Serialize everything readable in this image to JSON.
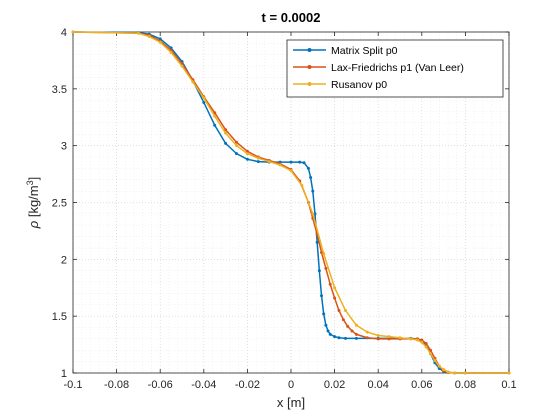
{
  "chart_data": {
    "type": "line",
    "title": "t = 0.0002",
    "xlabel": "x [m]",
    "ylabel_symbol": "ρ",
    "ylabel_unit": "[kg/m",
    "ylabel_exp": "3",
    "ylabel_close": "]",
    "xlim": [
      -0.1,
      0.1
    ],
    "ylim": [
      1,
      4
    ],
    "xticks": [
      "-0.1",
      "-0.08",
      "-0.06",
      "-0.04",
      "-0.02",
      "0",
      "0.02",
      "0.04",
      "0.06",
      "0.08",
      "0.1"
    ],
    "yticks": [
      "1",
      "1.5",
      "2",
      "2.5",
      "3",
      "3.5",
      "4"
    ],
    "grid": "on (major and minor, dotted)",
    "legend_position": "top-right",
    "series": [
      {
        "name": "Matrix Split p0",
        "color": "#0072BD",
        "marker": "dot",
        "x": [
          -0.1,
          -0.07,
          -0.065,
          -0.06,
          -0.055,
          -0.05,
          -0.045,
          -0.04,
          -0.035,
          -0.03,
          -0.025,
          -0.02,
          -0.015,
          -0.01,
          -0.005,
          0,
          0.004,
          0.006,
          0.008,
          0.009,
          0.01,
          0.011,
          0.012,
          0.013,
          0.014,
          0.015,
          0.016,
          0.017,
          0.018,
          0.02,
          0.022,
          0.025,
          0.03,
          0.04,
          0.05,
          0.055,
          0.058,
          0.06,
          0.062,
          0.064,
          0.066,
          0.068,
          0.07,
          0.072,
          0.075,
          0.08,
          0.1
        ],
        "y": [
          4.0,
          3.995,
          3.98,
          3.94,
          3.86,
          3.74,
          3.57,
          3.38,
          3.18,
          3.02,
          2.93,
          2.88,
          2.86,
          2.855,
          2.855,
          2.855,
          2.855,
          2.85,
          2.8,
          2.72,
          2.6,
          2.4,
          2.15,
          1.9,
          1.68,
          1.52,
          1.42,
          1.37,
          1.34,
          1.32,
          1.31,
          1.305,
          1.305,
          1.305,
          1.305,
          1.305,
          1.3,
          1.28,
          1.24,
          1.17,
          1.09,
          1.04,
          1.015,
          1.005,
          1.0,
          1.0,
          1.0
        ]
      },
      {
        "name": "Lax-Friedrichs p1 (Van Leer)",
        "color": "#D95319",
        "marker": "dot",
        "x": [
          -0.1,
          -0.07,
          -0.065,
          -0.06,
          -0.055,
          -0.05,
          -0.045,
          -0.04,
          -0.035,
          -0.03,
          -0.025,
          -0.02,
          -0.015,
          -0.01,
          -0.005,
          0,
          0.004,
          0.008,
          0.01,
          0.012,
          0.014,
          0.016,
          0.018,
          0.02,
          0.022,
          0.024,
          0.026,
          0.028,
          0.03,
          0.035,
          0.04,
          0.045,
          0.05,
          0.055,
          0.058,
          0.06,
          0.062,
          0.064,
          0.066,
          0.068,
          0.07,
          0.072,
          0.075,
          0.08,
          0.1
        ],
        "y": [
          4.0,
          3.99,
          3.97,
          3.92,
          3.84,
          3.72,
          3.58,
          3.43,
          3.29,
          3.14,
          3.03,
          2.95,
          2.9,
          2.87,
          2.84,
          2.79,
          2.69,
          2.5,
          2.36,
          2.22,
          2.06,
          1.92,
          1.78,
          1.66,
          1.55,
          1.47,
          1.41,
          1.37,
          1.34,
          1.31,
          1.3,
          1.3,
          1.3,
          1.3,
          1.3,
          1.29,
          1.26,
          1.2,
          1.13,
          1.06,
          1.02,
          1.005,
          1.0,
          1.0,
          1.0
        ]
      },
      {
        "name": "Rusanov p0",
        "color": "#EDB120",
        "marker": "dot",
        "x": [
          -0.1,
          -0.07,
          -0.065,
          -0.06,
          -0.055,
          -0.05,
          -0.045,
          -0.04,
          -0.035,
          -0.03,
          -0.025,
          -0.02,
          -0.015,
          -0.01,
          -0.005,
          0,
          0.005,
          0.01,
          0.015,
          0.02,
          0.025,
          0.03,
          0.035,
          0.04,
          0.045,
          0.05,
          0.055,
          0.058,
          0.06,
          0.062,
          0.064,
          0.066,
          0.068,
          0.07,
          0.072,
          0.075,
          0.08,
          0.1
        ],
        "y": [
          4.0,
          3.99,
          3.96,
          3.91,
          3.82,
          3.7,
          3.56,
          3.42,
          3.26,
          3.11,
          3.0,
          2.93,
          2.89,
          2.86,
          2.83,
          2.78,
          2.65,
          2.4,
          2.05,
          1.75,
          1.55,
          1.42,
          1.36,
          1.33,
          1.32,
          1.31,
          1.3,
          1.29,
          1.27,
          1.23,
          1.17,
          1.11,
          1.06,
          1.03,
          1.01,
          1.0,
          1.0,
          1.0
        ]
      }
    ]
  }
}
